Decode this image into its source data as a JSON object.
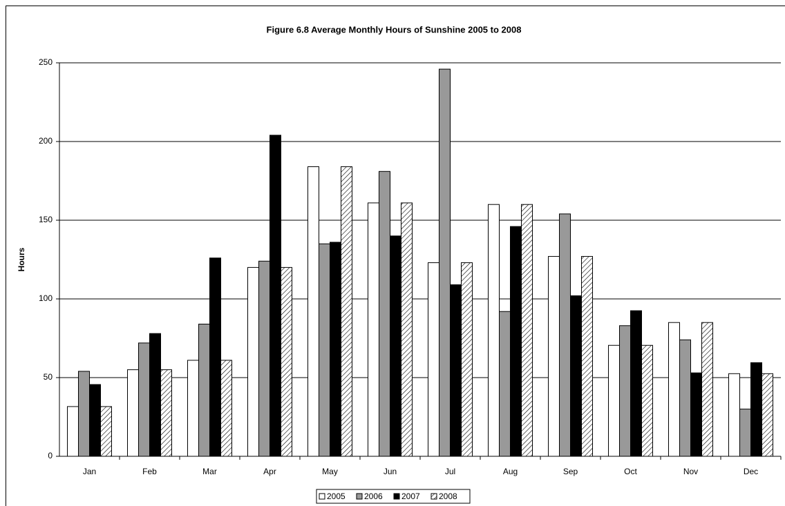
{
  "chart_data": {
    "type": "bar",
    "title": "Figure 6.8 Average Monthly Hours of Sunshine 2005 to 2008",
    "y_label": "Hours",
    "categories": [
      "Jan",
      "Feb",
      "Mar",
      "Apr",
      "May",
      "Jun",
      "Jul",
      "Aug",
      "Sep",
      "Oct",
      "Nov",
      "Dec"
    ],
    "series": [
      {
        "name": "2005",
        "color": "#ffffff",
        "values": [
          31.6,
          55,
          61,
          120,
          184,
          161,
          123,
          160,
          127,
          70.5,
          85,
          52.5
        ]
      },
      {
        "name": "2006",
        "color": "#999999",
        "values": [
          54,
          72,
          84,
          124,
          135,
          181,
          246,
          92,
          154,
          83,
          74,
          30
        ]
      },
      {
        "name": "2007",
        "color": "#000000",
        "values": [
          45.6,
          78,
          126,
          204,
          136,
          140,
          109,
          146,
          102,
          92.5,
          53,
          59.5
        ]
      },
      {
        "name": "2008",
        "color": "#ffffff",
        "hatch": true,
        "values": [
          31.6,
          55,
          61,
          120,
          184,
          161,
          123,
          160,
          127,
          70.5,
          85,
          52.5
        ]
      }
    ],
    "ylim": [
      0,
      250
    ],
    "yticks": [
      0,
      50,
      100,
      150,
      200,
      250
    ],
    "grid": true,
    "legend": "bottom"
  }
}
